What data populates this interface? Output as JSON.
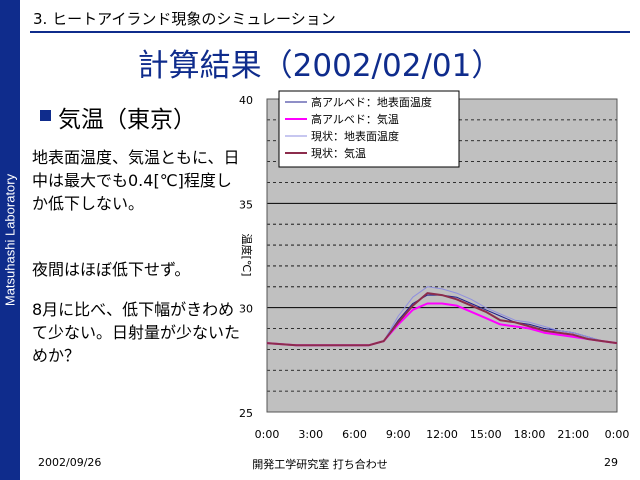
{
  "sidebar": {
    "label": "Matsuhashi Laboratory"
  },
  "header": {
    "section": "3. ヒートアイランド現象のシミュレーション",
    "title": "計算結果（2002/02/01）"
  },
  "content": {
    "heading": "気温（東京）",
    "paragraphs": [
      "地表面温度、気温ともに、日中は最大でも0.4[℃]程度しか低下しない。",
      "夜間はほぼ低下せず。",
      "8月に比べ、低下幅がきわめて少ない。日射量が少ないためか？"
    ]
  },
  "footer": {
    "date": "2002/09/26",
    "center": "開発工学研究室 打ち合わせ",
    "page": "29"
  },
  "colors": {
    "accent": "#0f2c8c",
    "plot_bg": "#c0c0c0"
  },
  "chart_data": {
    "type": "line",
    "ylabel": "温度[℃]",
    "ylim": [
      25,
      40
    ],
    "yticks": [
      25,
      30,
      35,
      40
    ],
    "xlim": [
      0,
      24
    ],
    "xticks": [
      0,
      3,
      6,
      9,
      12,
      15,
      18,
      21,
      24
    ],
    "xticklabels": [
      "0:00",
      "3:00",
      "6:00",
      "9:00",
      "12:00",
      "15:00",
      "18:00",
      "21:00",
      "0:00"
    ],
    "grid": "horizontal dashed every 1℃",
    "legend_position": "top-left",
    "x": [
      0,
      2,
      4,
      6,
      7,
      8,
      9,
      10,
      11,
      12,
      13,
      14,
      15,
      16,
      17,
      18,
      19,
      20,
      21,
      22,
      23,
      24
    ],
    "series": [
      {
        "name": "高アルベド：地表面温度",
        "color": "#1f1f8f",
        "width": 1,
        "values": [
          28.3,
          28.2,
          28.2,
          28.2,
          28.2,
          28.4,
          29.4,
          30.2,
          30.6,
          30.6,
          30.5,
          30.2,
          29.9,
          29.6,
          29.3,
          29.2,
          29.0,
          28.9,
          28.8,
          28.6,
          28.4,
          28.3
        ]
      },
      {
        "name": "高アルベド：気温",
        "color": "#ff00ff",
        "width": 2,
        "values": [
          28.3,
          28.2,
          28.2,
          28.2,
          28.2,
          28.4,
          29.2,
          29.9,
          30.2,
          30.2,
          30.1,
          29.8,
          29.5,
          29.2,
          29.1,
          29.0,
          28.8,
          28.7,
          28.6,
          28.5,
          28.4,
          28.3
        ]
      },
      {
        "name": "現状：地表面温度",
        "color": "#8f8fe0",
        "width": 1,
        "values": [
          28.3,
          28.2,
          28.2,
          28.2,
          28.2,
          28.4,
          29.6,
          30.5,
          31.0,
          30.9,
          30.7,
          30.4,
          30.0,
          29.7,
          29.4,
          29.3,
          29.1,
          28.9,
          28.8,
          28.6,
          28.4,
          28.3
        ]
      },
      {
        "name": "現状：気温",
        "color": "#8c2c4c",
        "width": 2,
        "values": [
          28.3,
          28.2,
          28.2,
          28.2,
          28.2,
          28.4,
          29.3,
          30.1,
          30.7,
          30.6,
          30.4,
          30.1,
          29.8,
          29.4,
          29.3,
          29.1,
          28.9,
          28.8,
          28.7,
          28.5,
          28.4,
          28.3
        ]
      }
    ]
  }
}
